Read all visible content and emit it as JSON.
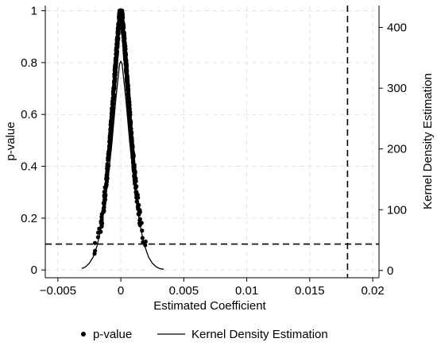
{
  "chart_data": {
    "type": "scatter",
    "xlabel": "Estimated Coefficient",
    "ylabel": "p-value",
    "y2label": "Kernel Density Estimation",
    "xlim": [
      -0.006,
      0.0205
    ],
    "ylim": [
      -0.03,
      1.02
    ],
    "y2lim": [
      -12,
      436
    ],
    "xticks": [
      -0.005,
      0,
      0.005,
      0.01,
      0.015,
      0.02
    ],
    "xtick_labels": [
      "−0.005",
      "0",
      "0.005",
      "0.01",
      "0.015",
      "0.02"
    ],
    "yticks": [
      0,
      0.2,
      0.4,
      0.6,
      0.8,
      1
    ],
    "ytick_labels": [
      "0",
      "0.2",
      "0.4",
      "0.6",
      "0.8",
      "1"
    ],
    "y2ticks": [
      0,
      100,
      200,
      300,
      400
    ],
    "y2tick_labels": [
      "0",
      "100",
      "200",
      "300",
      "400"
    ],
    "grid": true,
    "reference_lines": {
      "vertical_x": 0.018,
      "horizontal_y": 0.1
    },
    "legend": {
      "placement": "bottom",
      "entries": [
        {
          "label": "p-value",
          "marker": "dot"
        },
        {
          "label": "Kernel Density Estimation",
          "marker": "line"
        }
      ]
    },
    "series": [
      {
        "name": "p-value",
        "kind": "scatter",
        "shape": "two-sided p-value cloud: p falls from 1 at coefficient 0 toward ~0.01 near |coef| = 0.003",
        "center": 0,
        "scale": 0.001,
        "x_range": [
          -0.0031,
          0.0034
        ],
        "y_range": [
          0.01,
          1.0
        ],
        "n_points": 900
      },
      {
        "name": "Kernel Density Estimation",
        "kind": "line",
        "axis": "y2",
        "x": [
          -0.0031,
          -0.0028,
          -0.0025,
          -0.0022,
          -0.0019,
          -0.0016,
          -0.0013,
          -0.001,
          -0.0007,
          -0.0004,
          -0.0001,
          0,
          0.0001,
          0.0004,
          0.0007,
          0.001,
          0.0013,
          0.0016,
          0.0019,
          0.0022,
          0.0025,
          0.0028,
          0.0031,
          0.0034
        ],
        "y": [
          3,
          6,
          12,
          22,
          40,
          66,
          103,
          152,
          212,
          282,
          340,
          344,
          340,
          282,
          212,
          152,
          103,
          66,
          40,
          22,
          12,
          6,
          3,
          2
        ]
      }
    ]
  }
}
